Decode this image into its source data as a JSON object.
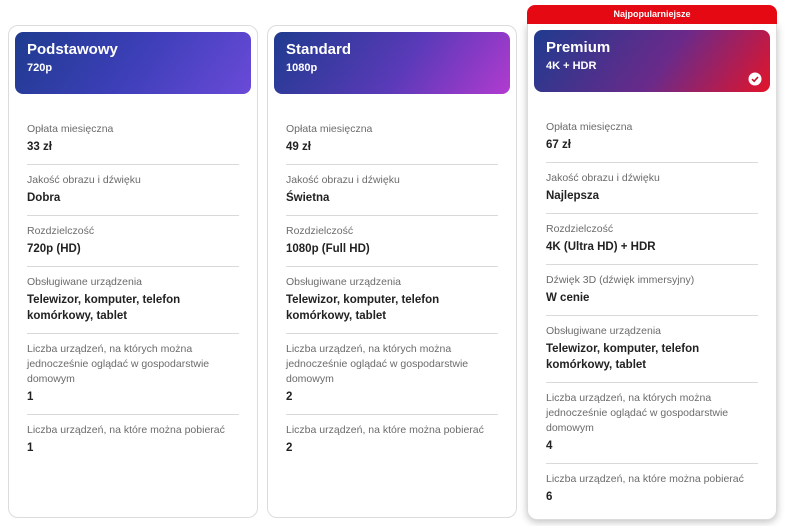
{
  "plans": [
    {
      "name": "Podstawowy",
      "resolution": "720p",
      "features": [
        {
          "label": "Opłata miesięczna",
          "value": "33 zł"
        },
        {
          "label": "Jakość obrazu i dźwięku",
          "value": "Dobra"
        },
        {
          "label": "Rozdzielczość",
          "value": "720p (HD)"
        },
        {
          "label": "Obsługiwane urządzenia",
          "value": "Telewizor, komputer, telefon komórkowy, tablet"
        },
        {
          "label": "Liczba urządzeń, na których można jednocześnie oglądać w gospodarstwie domowym",
          "value": "1"
        },
        {
          "label": "Liczba urządzeń, na które można pobierać",
          "value": "1"
        }
      ]
    },
    {
      "name": "Standard",
      "resolution": "1080p",
      "features": [
        {
          "label": "Opłata miesięczna",
          "value": "49 zł"
        },
        {
          "label": "Jakość obrazu i dźwięku",
          "value": "Świetna"
        },
        {
          "label": "Rozdzielczość",
          "value": "1080p (Full HD)"
        },
        {
          "label": "Obsługiwane urządzenia",
          "value": "Telewizor, komputer, telefon komórkowy, tablet"
        },
        {
          "label": "Liczba urządzeń, na których można jednocześnie oglądać w gospodarstwie domowym",
          "value": "2"
        },
        {
          "label": "Liczba urządzeń, na które można pobierać",
          "value": "2"
        }
      ]
    },
    {
      "name": "Premium",
      "resolution": "4K + HDR",
      "badge": "Najpopularniejsze",
      "features": [
        {
          "label": "Opłata miesięczna",
          "value": "67 zł"
        },
        {
          "label": "Jakość obrazu i dźwięku",
          "value": "Najlepsza"
        },
        {
          "label": "Rozdzielczość",
          "value": "4K (Ultra HD) + HDR"
        },
        {
          "label": "Dźwięk 3D (dźwięk immersyjny)",
          "value": "W cenie"
        },
        {
          "label": "Obsługiwane urządzenia",
          "value": "Telewizor, komputer, telefon komórkowy, tablet"
        },
        {
          "label": "Liczba urządzeń, na których można jednocześnie oglądać w gospodarstwie domowym",
          "value": "4"
        },
        {
          "label": "Liczba urządzeń, na które można pobierać",
          "value": "6"
        }
      ]
    }
  ]
}
